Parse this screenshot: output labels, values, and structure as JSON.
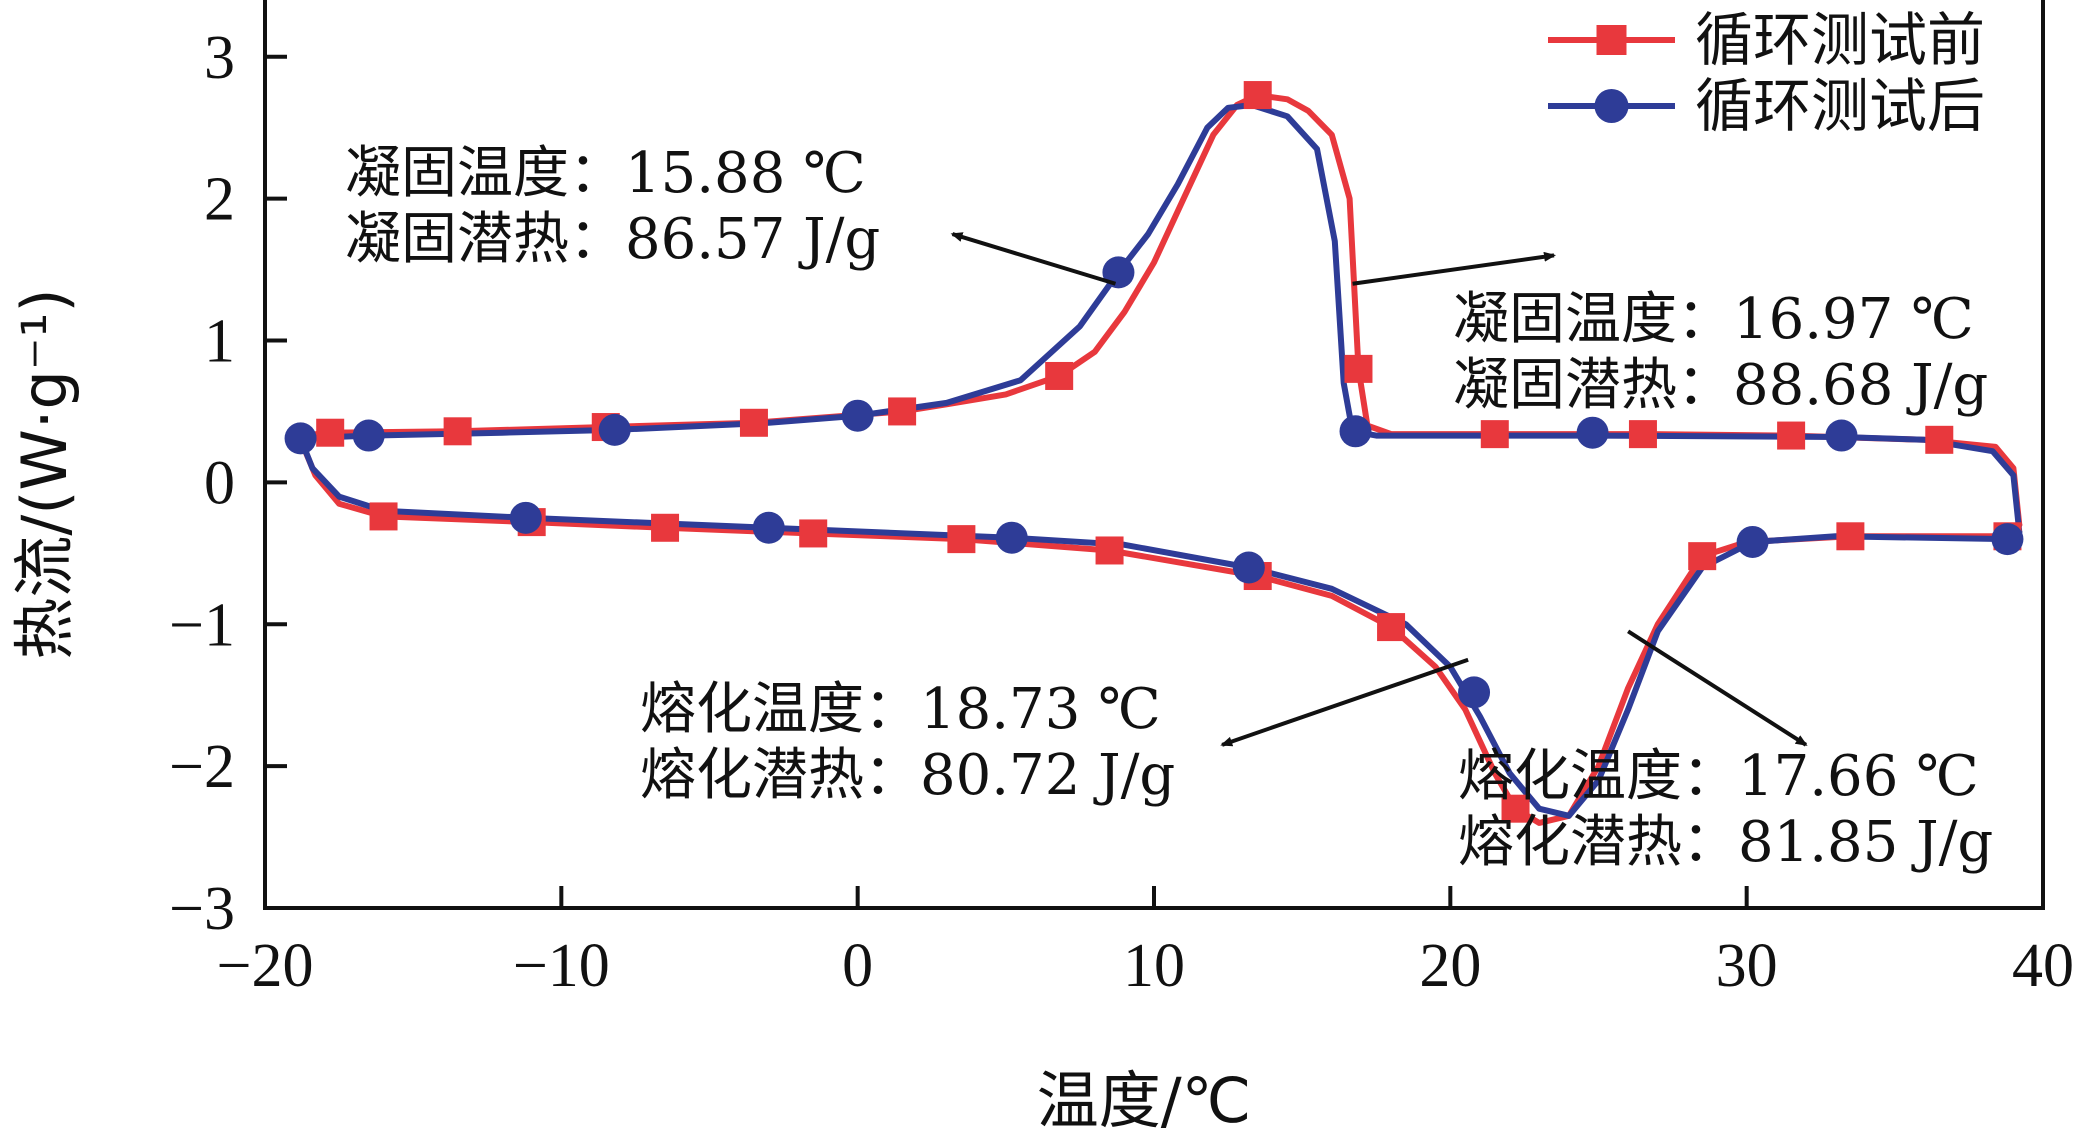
{
  "chart_data": {
    "type": "line",
    "xlabel": "温度/℃",
    "ylabel": "热流/(W·g⁻¹)",
    "xlim": [
      -20,
      40
    ],
    "ylim": [
      -3,
      3.4
    ],
    "x_ticks": [
      "−20",
      "−10",
      "0",
      "10",
      "20",
      "30",
      "40"
    ],
    "y_ticks": [
      "−3",
      "−2",
      "−1",
      "0",
      "1",
      "2",
      "3"
    ],
    "legend_position": "top-right",
    "series": [
      {
        "name": "循环测试前",
        "color": "#e8383d",
        "marker": "square",
        "cooling": [
          [
            39.2,
            -0.3
          ],
          [
            39,
            0.1
          ],
          [
            38.4,
            0.25
          ],
          [
            36,
            0.3
          ],
          [
            31.5,
            0.33
          ],
          [
            26.5,
            0.34
          ],
          [
            21.5,
            0.34
          ],
          [
            18,
            0.34
          ],
          [
            17.2,
            0.4
          ],
          [
            16.9,
            0.8
          ],
          [
            16.6,
            2.0
          ],
          [
            16,
            2.45
          ],
          [
            15.2,
            2.62
          ],
          [
            14.5,
            2.7
          ],
          [
            13.5,
            2.73
          ],
          [
            12.8,
            2.66
          ],
          [
            12,
            2.45
          ],
          [
            11,
            2.0
          ],
          [
            10,
            1.55
          ],
          [
            9,
            1.2
          ],
          [
            8,
            0.92
          ],
          [
            6.8,
            0.75
          ],
          [
            5,
            0.62
          ],
          [
            3,
            0.55
          ],
          [
            1.5,
            0.5
          ],
          [
            -3.5,
            0.42
          ],
          [
            -8.5,
            0.39
          ],
          [
            -13.5,
            0.36
          ],
          [
            -18,
            0.35
          ],
          [
            -18.8,
            0.32
          ]
        ],
        "heating": [
          [
            -18.8,
            0.3
          ],
          [
            -18.3,
            0.05
          ],
          [
            -17.5,
            -0.15
          ],
          [
            -16,
            -0.24
          ],
          [
            -11,
            -0.28
          ],
          [
            -6.5,
            -0.32
          ],
          [
            -1.5,
            -0.36
          ],
          [
            3.5,
            -0.4
          ],
          [
            8.5,
            -0.48
          ],
          [
            13.5,
            -0.66
          ],
          [
            16,
            -0.8
          ],
          [
            18,
            -1.02
          ],
          [
            19.5,
            -1.3
          ],
          [
            20.5,
            -1.6
          ],
          [
            21.5,
            -2.05
          ],
          [
            22.2,
            -2.3
          ],
          [
            23,
            -2.4
          ],
          [
            24,
            -2.35
          ],
          [
            25,
            -2.0
          ],
          [
            26,
            -1.45
          ],
          [
            27,
            -1.0
          ],
          [
            28.5,
            -0.52
          ],
          [
            30,
            -0.42
          ],
          [
            33.5,
            -0.38
          ],
          [
            38.8,
            -0.38
          ],
          [
            39.2,
            -0.3
          ]
        ],
        "marker_points": [
          [
            -17.8,
            0.35
          ],
          [
            -13.5,
            0.36
          ],
          [
            -8.5,
            0.39
          ],
          [
            -3.5,
            0.42
          ],
          [
            1.5,
            0.5
          ],
          [
            6.8,
            0.75
          ],
          [
            13.5,
            2.73
          ],
          [
            16.9,
            0.8
          ],
          [
            21.5,
            0.34
          ],
          [
            26.5,
            0.34
          ],
          [
            31.5,
            0.33
          ],
          [
            36.5,
            0.3
          ],
          [
            -16,
            -0.24
          ],
          [
            -11,
            -0.28
          ],
          [
            -6.5,
            -0.32
          ],
          [
            -1.5,
            -0.36
          ],
          [
            3.5,
            -0.4
          ],
          [
            8.5,
            -0.48
          ],
          [
            13.5,
            -0.66
          ],
          [
            18,
            -1.02
          ],
          [
            22.2,
            -2.3
          ],
          [
            28.5,
            -0.52
          ],
          [
            33.5,
            -0.38
          ],
          [
            38.8,
            -0.38
          ]
        ]
      },
      {
        "name": "循环测试后",
        "color": "#2e3c97",
        "marker": "circle",
        "cooling": [
          [
            39.2,
            -0.35
          ],
          [
            39,
            0.05
          ],
          [
            38.3,
            0.22
          ],
          [
            36,
            0.3
          ],
          [
            33.2,
            0.32
          ],
          [
            25,
            0.33
          ],
          [
            17.5,
            0.33
          ],
          [
            16.7,
            0.36
          ],
          [
            16.4,
            0.7
          ],
          [
            16.1,
            1.7
          ],
          [
            15.5,
            2.35
          ],
          [
            14.5,
            2.58
          ],
          [
            13.3,
            2.66
          ],
          [
            12.5,
            2.64
          ],
          [
            11.8,
            2.5
          ],
          [
            10.8,
            2.1
          ],
          [
            9.8,
            1.75
          ],
          [
            8.8,
            1.48
          ],
          [
            7.5,
            1.1
          ],
          [
            5.5,
            0.72
          ],
          [
            3,
            0.56
          ],
          [
            0,
            0.47
          ],
          [
            -3,
            0.42
          ],
          [
            -8.2,
            0.37
          ],
          [
            -12,
            0.35
          ],
          [
            -16.5,
            0.33
          ],
          [
            -18.8,
            0.31
          ]
        ],
        "heating": [
          [
            -18.8,
            0.31
          ],
          [
            -18.4,
            0.1
          ],
          [
            -17.5,
            -0.1
          ],
          [
            -16,
            -0.2
          ],
          [
            -11.2,
            -0.25
          ],
          [
            -3,
            -0.32
          ],
          [
            5.2,
            -0.39
          ],
          [
            9,
            -0.44
          ],
          [
            13.2,
            -0.6
          ],
          [
            16,
            -0.75
          ],
          [
            18.5,
            -1.0
          ],
          [
            20,
            -1.3
          ],
          [
            21,
            -1.65
          ],
          [
            22,
            -2.05
          ],
          [
            23,
            -2.3
          ],
          [
            24,
            -2.35
          ],
          [
            25,
            -2.1
          ],
          [
            26,
            -1.6
          ],
          [
            27,
            -1.05
          ],
          [
            28.5,
            -0.6
          ],
          [
            30.2,
            -0.42
          ],
          [
            33,
            -0.38
          ],
          [
            38.8,
            -0.4
          ],
          [
            39.2,
            -0.35
          ]
        ],
        "marker_points": [
          [
            -18.8,
            0.31
          ],
          [
            -16.5,
            0.33
          ],
          [
            -8.2,
            0.37
          ],
          [
            0,
            0.47
          ],
          [
            8.8,
            1.48
          ],
          [
            16.8,
            0.36
          ],
          [
            24.8,
            0.35
          ],
          [
            33.2,
            0.33
          ],
          [
            -11.2,
            -0.25
          ],
          [
            -3,
            -0.32
          ],
          [
            5.2,
            -0.39
          ],
          [
            13.2,
            -0.6
          ],
          [
            20.8,
            -1.48
          ],
          [
            30.2,
            -0.42
          ],
          [
            38.8,
            -0.4
          ]
        ]
      }
    ],
    "annotations": [
      {
        "line1": "凝固温度：15.88 ℃",
        "line2": "凝固潜热：86.57 J/g",
        "arrow_from": [
          8.7,
          1.4
        ],
        "arrow_to": [
          3.2,
          1.75
        ]
      },
      {
        "line1": "凝固温度：16.97 ℃",
        "line2": "凝固潜热：88.68 J/g",
        "arrow_from": [
          16.7,
          1.4
        ],
        "arrow_to": [
          23.5,
          1.6
        ]
      },
      {
        "line1": "熔化温度：18.73 ℃",
        "line2": "熔化潜热：80.72 J/g",
        "arrow_from": [
          20.6,
          -1.25
        ],
        "arrow_to": [
          12.3,
          -1.85
        ]
      },
      {
        "line1": "熔化温度：17.66 ℃",
        "line2": "熔化潜热：81.85 J/g",
        "arrow_from": [
          26,
          -1.05
        ],
        "arrow_to": [
          32,
          -1.85
        ]
      }
    ]
  }
}
